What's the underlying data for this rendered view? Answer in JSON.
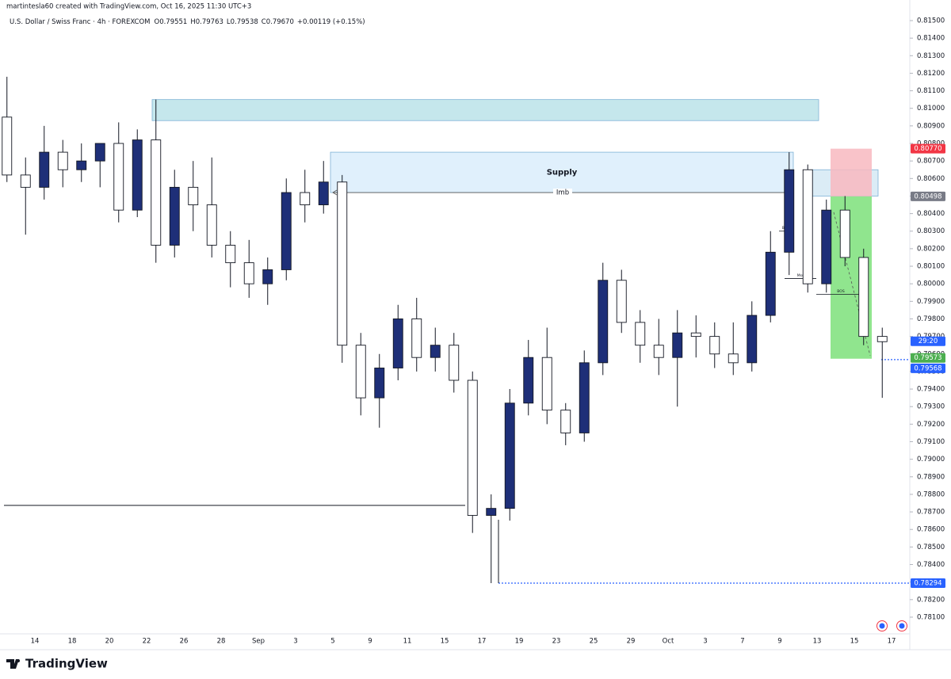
{
  "header": {
    "credit": "martintesla60 created with TradingView.com, Oct 16, 2025 11:30 UTC+3",
    "brand": "TradingView"
  },
  "chart_data": {
    "type": "candlestick",
    "title": "U.S. Dollar / Swiss Franc · 4h · FOREXCOM",
    "legend_values": [
      "O0.79551",
      "H0.79763",
      "L0.79538",
      "C0.79670",
      "+0.00119 (+0.15%)"
    ],
    "categories": [
      null,
      null,
      "14",
      null,
      "18",
      null,
      "20",
      null,
      "22",
      null,
      "26",
      null,
      "28",
      null,
      "Sep",
      null,
      "3",
      null,
      "5",
      null,
      "9",
      null,
      "11",
      null,
      "15",
      null,
      "17",
      null,
      "19",
      null,
      "23",
      null,
      "25",
      null,
      "29",
      null,
      "Oct",
      null,
      "3",
      null,
      "7",
      null,
      "9",
      null,
      "13",
      null,
      "15",
      null,
      "17"
    ],
    "open": [
      0.8095,
      0.8062,
      0.8055,
      0.8075,
      0.8065,
      0.807,
      0.808,
      0.8042,
      0.8082,
      0.8022,
      0.8055,
      0.8045,
      0.8022,
      0.8012,
      0.8,
      0.8008,
      0.8052,
      0.8045,
      0.8058,
      0.7965,
      0.7935,
      0.7952,
      0.798,
      0.7958,
      0.7965,
      0.7945,
      0.7868,
      0.7872,
      0.7932,
      0.7958,
      0.7928,
      0.7915,
      0.7955,
      0.8002,
      0.7978,
      0.7965,
      0.7958,
      0.7972,
      0.797,
      0.796,
      0.7955,
      0.7982,
      0.8018,
      0.8065,
      0.8,
      0.8042,
      0.8015,
      0.797,
      null
    ],
    "high": [
      0.8118,
      0.8072,
      0.809,
      0.8082,
      0.808,
      0.808,
      0.8092,
      0.8088,
      0.8105,
      0.8065,
      0.807,
      0.8072,
      0.803,
      0.8025,
      0.8015,
      0.806,
      0.8065,
      0.807,
      0.8062,
      0.7972,
      0.796,
      0.7988,
      0.7992,
      0.7975,
      0.7972,
      0.795,
      0.788,
      0.794,
      0.7968,
      0.7975,
      0.7932,
      0.7962,
      0.8012,
      0.8008,
      0.7985,
      0.798,
      0.7985,
      0.7982,
      0.7978,
      0.7978,
      0.799,
      0.803,
      0.8075,
      0.8068,
      0.8048,
      0.805,
      0.802,
      0.7975,
      null
    ],
    "low": [
      0.8058,
      0.8028,
      0.8048,
      0.8055,
      0.8058,
      0.8055,
      0.8035,
      0.8038,
      0.8012,
      0.8015,
      0.803,
      0.8015,
      0.7998,
      0.7992,
      0.7988,
      0.8002,
      0.8035,
      0.804,
      0.7955,
      0.7925,
      0.7918,
      0.7945,
      0.795,
      0.795,
      0.7938,
      0.7858,
      0.78294,
      0.7865,
      0.7925,
      0.792,
      0.7908,
      0.791,
      0.7948,
      0.7972,
      0.7955,
      0.7948,
      0.793,
      0.7958,
      0.7952,
      0.7948,
      0.795,
      0.7978,
      0.8005,
      0.7995,
      0.7995,
      0.801,
      0.7965,
      0.7935,
      null
    ],
    "close": [
      0.8062,
      0.8055,
      0.8075,
      0.8065,
      0.807,
      0.808,
      0.8042,
      0.8082,
      0.8022,
      0.8055,
      0.8045,
      0.8022,
      0.8012,
      0.8,
      0.8008,
      0.8052,
      0.8045,
      0.8058,
      0.7965,
      0.7935,
      0.7952,
      0.798,
      0.7958,
      0.7965,
      0.7945,
      0.7868,
      0.7872,
      0.7932,
      0.7958,
      0.7928,
      0.7915,
      0.7955,
      0.8002,
      0.7978,
      0.7965,
      0.7958,
      0.7972,
      0.797,
      0.796,
      0.7955,
      0.7982,
      0.8018,
      0.8065,
      0.8,
      0.8042,
      0.8015,
      0.797,
      0.7967,
      null
    ],
    "up_color": "#1e2f78",
    "down_color": "#ffffff",
    "ylim": [
      0.78,
      0.816
    ],
    "yticks": [
      {
        "value": 0.815,
        "label": "0.81500"
      },
      {
        "value": 0.814,
        "label": "0.81400"
      },
      {
        "value": 0.813,
        "label": "0.81300"
      },
      {
        "value": 0.812,
        "label": "0.81200"
      },
      {
        "value": 0.811,
        "label": "0.81100"
      },
      {
        "value": 0.81,
        "label": "0.81000"
      },
      {
        "value": 0.809,
        "label": "0.80900"
      },
      {
        "value": 0.808,
        "label": "0.80800"
      },
      {
        "value": 0.807,
        "label": "0.80700"
      },
      {
        "value": 0.806,
        "label": "0.80600"
      },
      {
        "value": 0.805,
        "label": "0.80500"
      },
      {
        "value": 0.804,
        "label": "0.80400"
      },
      {
        "value": 0.803,
        "label": "0.80300"
      },
      {
        "value": 0.802,
        "label": "0.80200"
      },
      {
        "value": 0.801,
        "label": "0.80100"
      },
      {
        "value": 0.8,
        "label": "0.80000"
      },
      {
        "value": 0.799,
        "label": "0.79900"
      },
      {
        "value": 0.798,
        "label": "0.79800"
      },
      {
        "value": 0.797,
        "label": "0.79700"
      },
      {
        "value": 0.796,
        "label": "0.79600"
      },
      {
        "value": 0.795,
        "label": "0.79500"
      },
      {
        "value": 0.794,
        "label": "0.79400"
      },
      {
        "value": 0.793,
        "label": "0.79300"
      },
      {
        "value": 0.792,
        "label": "0.79200"
      },
      {
        "value": 0.791,
        "label": "0.79100"
      },
      {
        "value": 0.79,
        "label": "0.79000"
      },
      {
        "value": 0.789,
        "label": "0.78900"
      },
      {
        "value": 0.788,
        "label": "0.78800"
      },
      {
        "value": 0.787,
        "label": "0.78700"
      },
      {
        "value": 0.786,
        "label": "0.78600"
      },
      {
        "value": 0.785,
        "label": "0.78500"
      },
      {
        "value": 0.784,
        "label": "0.78400"
      },
      {
        "value": 0.783,
        "label": "0.78300"
      },
      {
        "value": 0.782,
        "label": "0.78200"
      },
      {
        "value": 0.781,
        "label": "0.78100"
      }
    ],
    "grid": false,
    "zones": [
      {
        "low": 0.8093,
        "high": 0.8105,
        "color": "#b2dfe6"
      },
      {
        "low": 0.8052,
        "high": 0.8075,
        "color": "#d6ebfb",
        "label": "Supply"
      },
      {
        "low": 0.805,
        "high": 0.8065,
        "color": "#cfe6f3"
      }
    ],
    "position": {
      "stop": 0.8077,
      "entry": 0.80498,
      "target": 0.79573,
      "stop_color": "#f8b9bf",
      "target_color": "#7de07a"
    },
    "levels": [
      {
        "value": 0.78737,
        "color": "#131722",
        "style": "solid"
      },
      {
        "value": 0.78294,
        "color": "#2962ff",
        "style": "dotted"
      },
      {
        "value": 0.79568,
        "color": "#2962ff",
        "style": "dotted"
      },
      {
        "value": 0.8052,
        "color": "#555555",
        "style": "solid",
        "label": "Imb"
      }
    ],
    "structure": [
      {
        "value": 0.803,
        "label": "BOS"
      },
      {
        "value": 0.8003,
        "label": "Mss"
      },
      {
        "value": 0.7994,
        "label": "BOS"
      }
    ],
    "price_labels": [
      {
        "value": 0.8077,
        "label": "0.80770",
        "color": "#f23645"
      },
      {
        "value": 0.80498,
        "label": "0.80498",
        "color": "#787b86"
      },
      {
        "value": 0.79573,
        "label": "0.79573",
        "color": "#4caf50"
      },
      {
        "value": 0.79568,
        "label": "0.79568",
        "color": "#2962ff"
      },
      {
        "value": 0.78294,
        "label": "0.78294",
        "color": "#2962ff"
      }
    ],
    "countdown": "29:20"
  }
}
